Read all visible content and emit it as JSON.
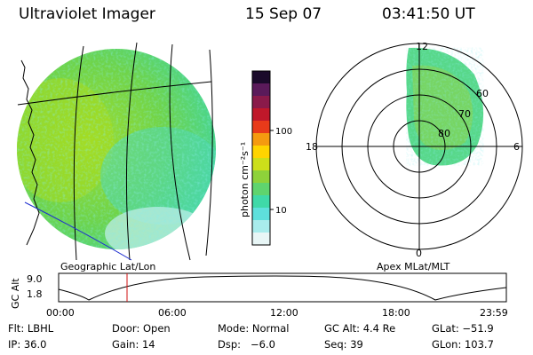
{
  "header": {
    "title": "Ultraviolet Imager",
    "date": "15 Sep 07",
    "time": "03:41:50 UT"
  },
  "left_panel": {
    "caption": "Geographic Lat/Lon"
  },
  "right_panel": {
    "caption": "Apex MLat/MLT",
    "mlt_labels": {
      "top": "12",
      "left": "18",
      "right": "6",
      "bottom": "0"
    },
    "mlat_labels": [
      "60",
      "70",
      "80"
    ]
  },
  "colorbar": {
    "unit_label": "photon cm⁻²s⁻¹",
    "ticks": [
      "100",
      "10"
    ],
    "colors": [
      "#1a0a2a",
      "#5a1a5a",
      "#8a1a4a",
      "#c0182a",
      "#e83a1a",
      "#f59a10",
      "#ffd400",
      "#ccdf1a",
      "#8ed23a",
      "#5fd46e",
      "#3fd9a8",
      "#5ee0dc",
      "#a8ecec",
      "#e8f6f6"
    ]
  },
  "orbit": {
    "ylabel": "GC Alt",
    "yticks": [
      "9.0",
      "1.8"
    ],
    "xticks": [
      "00:00",
      "06:00",
      "12:00",
      "18:00",
      "23:59"
    ],
    "marker_time_frac": 0.1528
  },
  "footer": {
    "row1": {
      "flt": "Flt: LBHL",
      "door": "Door: Open",
      "mode": "Mode: Normal",
      "gcalt": "GC Alt: 4.4 Re",
      "glat": "GLat: −51.9"
    },
    "row2": {
      "ip": "IP: 36.0",
      "gain": "Gain: 14",
      "dsp": "Dsp:   −6.0",
      "seq": "Seq: 39",
      "glon": "GLon: 103.7"
    }
  }
}
